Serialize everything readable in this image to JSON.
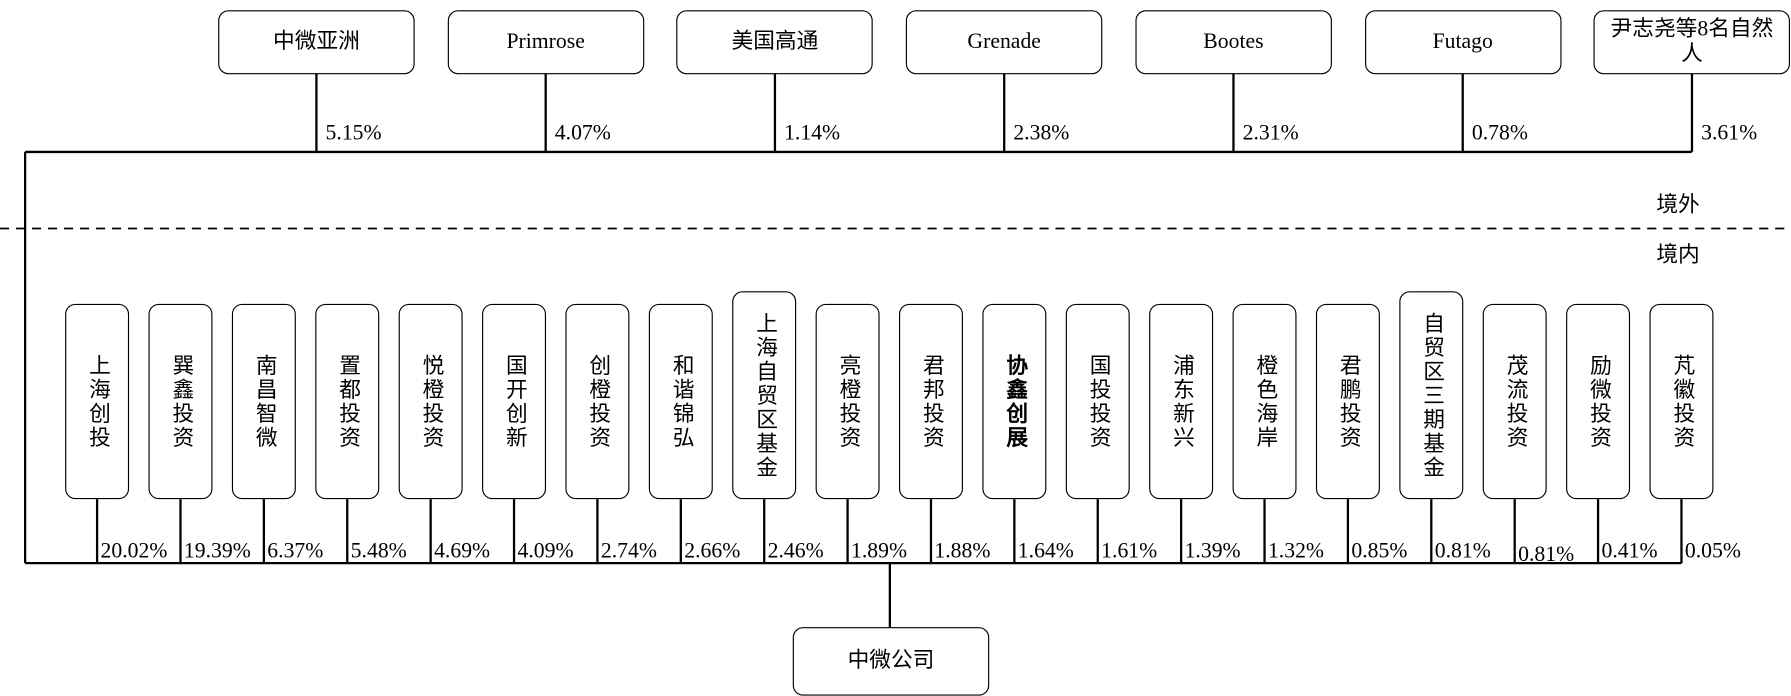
{
  "offshore": {
    "label": "境外",
    "shareholders": [
      {
        "name": "中微亚洲",
        "share": "5.15%"
      },
      {
        "name": "Primrose",
        "share": "4.07%"
      },
      {
        "name": "美国高通",
        "share": "1.14%"
      },
      {
        "name": "Grenade",
        "share": "2.38%"
      },
      {
        "name": "Bootes",
        "share": "2.31%"
      },
      {
        "name": "Futago",
        "share": "0.78%"
      },
      {
        "name": "尹志尧等8名自然人",
        "share": "3.61%"
      }
    ]
  },
  "onshore": {
    "label": "境内",
    "shareholders": [
      {
        "name": "上海创投",
        "share": "20.02%"
      },
      {
        "name": "巽鑫投资",
        "share": "19.39%"
      },
      {
        "name": "南昌智微",
        "share": "6.37%"
      },
      {
        "name": "置都投资",
        "share": "5.48%"
      },
      {
        "name": "悦橙投资",
        "share": "4.69%"
      },
      {
        "name": "国开创新",
        "share": "4.09%"
      },
      {
        "name": "创橙投资",
        "share": "2.74%"
      },
      {
        "name": "和谐锦弘",
        "share": "2.66%"
      },
      {
        "name": "上海自贸区基金",
        "share": "2.46%"
      },
      {
        "name": "亮橙投资",
        "share": "1.89%"
      },
      {
        "name": "君邦投资",
        "share": "1.88%"
      },
      {
        "name": "协鑫创展",
        "share": "1.64%"
      },
      {
        "name": "国投投资",
        "share": "1.61%"
      },
      {
        "name": "浦东新兴",
        "share": "1.39%"
      },
      {
        "name": "橙色海岸",
        "share": "1.32%"
      },
      {
        "name": "君鹏投资",
        "share": "0.85%"
      },
      {
        "name": "自贸区三期基金",
        "share": "0.81%"
      },
      {
        "name": "茂流投资",
        "share": "0.81%"
      },
      {
        "name": "励微投资",
        "share": "0.41%"
      },
      {
        "name": "芃徽投资",
        "share": "0.05%"
      }
    ]
  },
  "company": "中微公司"
}
